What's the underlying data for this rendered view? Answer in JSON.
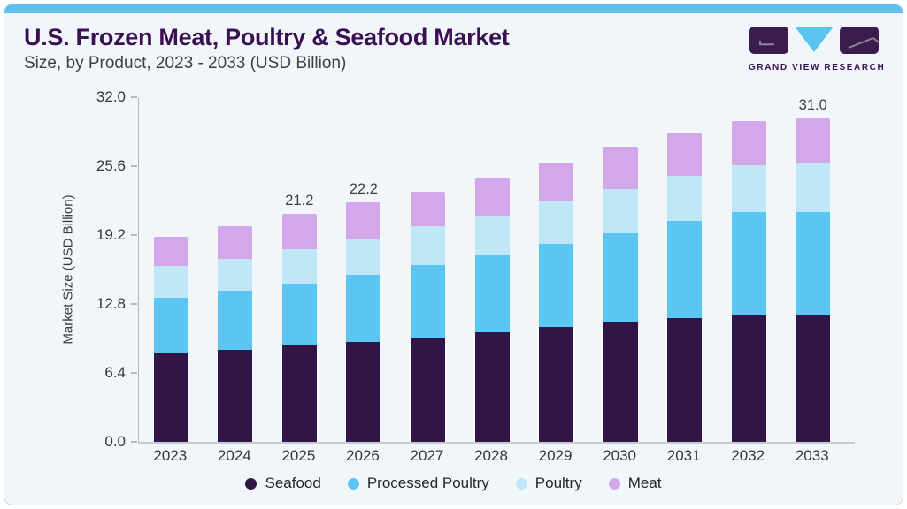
{
  "header": {
    "title": "U.S. Frozen Meat, Poultry & Seafood Market",
    "subtitle": "Size, by Product, 2023 - 2033 (USD Billion)"
  },
  "logo": {
    "text": "GRAND VIEW RESEARCH"
  },
  "colors": {
    "accent_bar": "#62c1ec",
    "card_background": "#f1f6fa",
    "title_text": "#3b1053",
    "axis_line": "#b3bac2",
    "logo_purple": "#3a1c4e",
    "logo_triangle": "#59c6f2"
  },
  "chart_data": {
    "type": "bar",
    "stacked": true,
    "title": "U.S. Frozen Meat, Poultry & Seafood Market",
    "subtitle": "Size, by Product, 2023 - 2033 (USD Billion)",
    "xlabel": "",
    "ylabel": "Market Size (USD Billion)",
    "ylim": [
      0,
      32
    ],
    "yticks": [
      "0.0",
      "6.4",
      "12.8",
      "19.2",
      "25.6",
      "32.0"
    ],
    "grid": false,
    "legend_position": "bottom",
    "categories": [
      "2023",
      "2024",
      "2025",
      "2026",
      "2027",
      "2028",
      "2029",
      "2030",
      "2031",
      "2032",
      "2033"
    ],
    "series": [
      {
        "name": "Seafood",
        "color": "#321547",
        "values": [
          8.2,
          8.5,
          9.0,
          9.3,
          9.7,
          10.2,
          10.7,
          11.2,
          11.5,
          11.8,
          12.1
        ]
      },
      {
        "name": "Processed Poultry",
        "color": "#5bc6f2",
        "values": [
          5.2,
          5.5,
          5.7,
          6.2,
          6.7,
          7.1,
          7.7,
          8.2,
          9.0,
          9.5,
          9.9
        ]
      },
      {
        "name": "Poultry",
        "color": "#c0e7f8",
        "values": [
          2.9,
          3.0,
          3.2,
          3.4,
          3.6,
          3.7,
          4.0,
          4.1,
          4.2,
          4.4,
          4.7
        ]
      },
      {
        "name": "Meat",
        "color": "#d2a8ea",
        "values": [
          2.7,
          3.0,
          3.3,
          3.3,
          3.2,
          3.5,
          3.5,
          3.9,
          4.0,
          4.1,
          4.3
        ]
      }
    ],
    "totals": [
      19.0,
      20.0,
      21.2,
      22.2,
      23.2,
      24.5,
      25.9,
      27.4,
      28.7,
      29.8,
      31.0
    ],
    "total_labels": {
      "2025": "21.2",
      "2026": "22.2",
      "2033": "31.0"
    }
  }
}
